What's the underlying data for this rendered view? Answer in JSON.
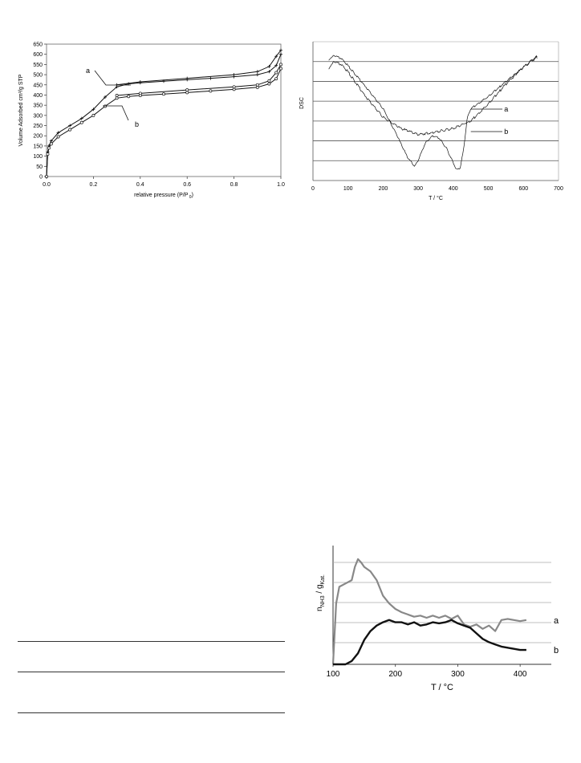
{
  "figures": [
    {
      "id": "isotherm",
      "chart_data": {
        "type": "line",
        "title": "",
        "xlabel": "relative pressure (P/P",
        "xlabel_sub": "0",
        "xlabel_close": ")",
        "ylabel": "Volume Adsorbed cm³/g STP",
        "xlim": [
          0,
          1.0
        ],
        "ylim": [
          0,
          650
        ],
        "xticks": [
          "0.0",
          "0.2",
          "0.4",
          "0.6",
          "0.8",
          "1.0"
        ],
        "yticks": [
          "0",
          "50",
          "100",
          "150",
          "200",
          "250",
          "300",
          "350",
          "400",
          "450",
          "500",
          "550",
          "600",
          "650"
        ],
        "grid": false,
        "series": [
          {
            "name": "a",
            "branch": "adsorption",
            "x": [
              0.0,
              0.005,
              0.01,
              0.02,
              0.05,
              0.1,
              0.15,
              0.2,
              0.25,
              0.3,
              0.35,
              0.4,
              0.5,
              0.6,
              0.7,
              0.8,
              0.9,
              0.95,
              0.98,
              1.0
            ],
            "y": [
              0,
              120,
              150,
              175,
              215,
              250,
              285,
              330,
              390,
              440,
              455,
              460,
              468,
              475,
              482,
              490,
              500,
              515,
              545,
              600
            ]
          },
          {
            "name": "a",
            "branch": "desorption",
            "x": [
              1.0,
              0.98,
              0.95,
              0.9,
              0.8,
              0.6,
              0.4,
              0.3
            ],
            "y": [
              620,
              590,
              540,
              515,
              500,
              482,
              465,
              450
            ]
          },
          {
            "name": "b",
            "branch": "adsorption",
            "x": [
              0.0,
              0.005,
              0.01,
              0.02,
              0.05,
              0.1,
              0.15,
              0.2,
              0.25,
              0.3,
              0.35,
              0.4,
              0.5,
              0.6,
              0.7,
              0.8,
              0.9,
              0.95,
              0.98,
              1.0
            ],
            "y": [
              0,
              110,
              140,
              160,
              195,
              230,
              265,
              300,
              345,
              385,
              393,
              398,
              405,
              412,
              420,
              428,
              438,
              455,
              480,
              530
            ]
          },
          {
            "name": "b",
            "branch": "desorption",
            "x": [
              1.0,
              0.98,
              0.95,
              0.9,
              0.8,
              0.6,
              0.4,
              0.3
            ],
            "y": [
              550,
              510,
              470,
              450,
              440,
              425,
              408,
              398
            ]
          }
        ]
      },
      "annotations": [
        "a",
        "b"
      ]
    },
    {
      "id": "dsc",
      "chart_data": {
        "type": "line",
        "title": "",
        "xlabel": "T / °C",
        "ylabel": "DSC",
        "xlim": [
          0,
          700
        ],
        "xticks": [
          "0",
          "100",
          "200",
          "300",
          "400",
          "500",
          "600",
          "700"
        ],
        "grid": true,
        "series": [
          {
            "name": "a",
            "x": [
              45,
              60,
              80,
              100,
              150,
              200,
              250,
              300,
              350,
              400,
              450,
              500,
              550,
              600,
              640
            ],
            "y": [
              0.85,
              0.9,
              0.88,
              0.82,
              0.62,
              0.45,
              0.36,
              0.31,
              0.33,
              0.36,
              0.42,
              0.56,
              0.72,
              0.86,
              0.94
            ]
          },
          {
            "name": "b",
            "x": [
              45,
              60,
              80,
              100,
              150,
              200,
              240,
              270,
              290,
              300,
              320,
              340,
              360,
              380,
              400,
              410,
              420,
              430,
              440,
              450,
              470,
              500,
              550,
              600,
              640
            ],
            "y": [
              0.92,
              0.95,
              0.93,
              0.87,
              0.7,
              0.52,
              0.3,
              0.12,
              0.05,
              0.1,
              0.24,
              0.3,
              0.28,
              0.2,
              0.08,
              0.02,
              0.04,
              0.2,
              0.45,
              0.52,
              0.56,
              0.62,
              0.74,
              0.86,
              0.95
            ]
          }
        ]
      },
      "annotations": [
        "a",
        "b"
      ]
    },
    {
      "id": "tpd",
      "chart_data": {
        "type": "line",
        "title": "",
        "xlabel": "T / °C",
        "ylabel_main": "n",
        "ylabel_sub1": "NH3",
        "ylabel_mid": " / g",
        "ylabel_sub2": "Kat.",
        "xlim": [
          100,
          450
        ],
        "xticks": [
          "100",
          "200",
          "300",
          "400"
        ],
        "grid": true,
        "series": [
          {
            "name": "a",
            "x": [
              100,
              105,
              110,
              120,
              130,
              135,
              140,
              145,
              150,
              160,
              170,
              180,
              190,
              200,
              210,
              220,
              230,
              240,
              250,
              260,
              270,
              280,
              290,
              300,
              310,
              320,
              330,
              340,
              350,
              360,
              370,
              380,
              390,
              400,
              410
            ],
            "y": [
              0.0,
              0.55,
              0.7,
              0.73,
              0.76,
              0.88,
              0.95,
              0.92,
              0.88,
              0.84,
              0.76,
              0.62,
              0.55,
              0.5,
              0.47,
              0.45,
              0.43,
              0.44,
              0.42,
              0.44,
              0.42,
              0.44,
              0.41,
              0.44,
              0.36,
              0.34,
              0.36,
              0.32,
              0.35,
              0.3,
              0.4,
              0.41,
              0.4,
              0.39,
              0.4
            ]
          },
          {
            "name": "b",
            "x": [
              100,
              120,
              130,
              140,
              150,
              160,
              170,
              180,
              190,
              200,
              210,
              220,
              230,
              240,
              250,
              260,
              270,
              280,
              290,
              300,
              310,
              320,
              330,
              340,
              350,
              360,
              370,
              380,
              390,
              400,
              410
            ],
            "y": [
              0.0,
              0.0,
              0.03,
              0.1,
              0.22,
              0.3,
              0.35,
              0.38,
              0.4,
              0.38,
              0.38,
              0.36,
              0.38,
              0.35,
              0.36,
              0.38,
              0.37,
              0.38,
              0.4,
              0.37,
              0.35,
              0.33,
              0.28,
              0.23,
              0.2,
              0.18,
              0.16,
              0.15,
              0.14,
              0.13,
              0.13
            ]
          }
        ]
      },
      "annotations": [
        "a",
        "b"
      ]
    }
  ],
  "table_rules": [
    "top-rule",
    "mid-rule",
    "bottom-rule"
  ]
}
